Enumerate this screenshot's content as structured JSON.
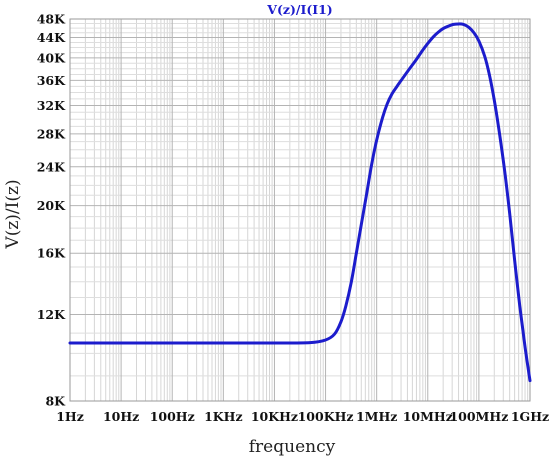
{
  "chart_data": {
    "type": "line",
    "title": "V(z)/I(I1)",
    "xlabel": "frequency",
    "ylabel": "V(z)/I(z)",
    "x_scale": "log",
    "y_scale": "log",
    "xlim": [
      1,
      1000000000
    ],
    "ylim": [
      8000,
      48000
    ],
    "x_ticks": [
      {
        "value": 1,
        "label": "1Hz"
      },
      {
        "value": 10,
        "label": "10Hz"
      },
      {
        "value": 100,
        "label": "100Hz"
      },
      {
        "value": 1000,
        "label": "1KHz"
      },
      {
        "value": 10000,
        "label": "10KHz"
      },
      {
        "value": 100000,
        "label": "100KHz"
      },
      {
        "value": 1000000,
        "label": "1MHz"
      },
      {
        "value": 10000000,
        "label": "10MHz"
      },
      {
        "value": 100000000,
        "label": "100MHz"
      },
      {
        "value": 1000000000,
        "label": "1GHz"
      }
    ],
    "y_ticks": [
      {
        "value": 8000,
        "label": "8K"
      },
      {
        "value": 12000,
        "label": "12K"
      },
      {
        "value": 16000,
        "label": "16K"
      },
      {
        "value": 20000,
        "label": "20K"
      },
      {
        "value": 24000,
        "label": "24K"
      },
      {
        "value": 28000,
        "label": "28K"
      },
      {
        "value": 32000,
        "label": "32K"
      },
      {
        "value": 36000,
        "label": "36K"
      },
      {
        "value": 40000,
        "label": "40K"
      },
      {
        "value": 44000,
        "label": "44K"
      },
      {
        "value": 48000,
        "label": "48K"
      }
    ],
    "grid": true,
    "series": [
      {
        "name": "V(z)/I(I1)",
        "color": "#1c1ccc",
        "points": [
          [
            1,
            10500
          ],
          [
            10,
            10500
          ],
          [
            100,
            10500
          ],
          [
            1000,
            10500
          ],
          [
            10000,
            10500
          ],
          [
            50000,
            10520
          ],
          [
            100000,
            10650
          ],
          [
            150000,
            10950
          ],
          [
            200000,
            11600
          ],
          [
            250000,
            12500
          ],
          [
            320000,
            14000
          ],
          [
            400000,
            16000
          ],
          [
            500000,
            18300
          ],
          [
            630000,
            21000
          ],
          [
            800000,
            24300
          ],
          [
            1000000,
            27200
          ],
          [
            1300000,
            30200
          ],
          [
            1600000,
            32200
          ],
          [
            2000000,
            33800
          ],
          [
            2500000,
            35000
          ],
          [
            3200000,
            36300
          ],
          [
            4000000,
            37500
          ],
          [
            5000000,
            38700
          ],
          [
            6300000,
            40000
          ],
          [
            8000000,
            41500
          ],
          [
            10000000,
            42800
          ],
          [
            13000000,
            44200
          ],
          [
            16000000,
            45100
          ],
          [
            20000000,
            45900
          ],
          [
            25000000,
            46400
          ],
          [
            32000000,
            46800
          ],
          [
            40000000,
            46900
          ],
          [
            50000000,
            46800
          ],
          [
            63000000,
            46200
          ],
          [
            80000000,
            45000
          ],
          [
            100000000,
            43300
          ],
          [
            130000000,
            40300
          ],
          [
            160000000,
            37000
          ],
          [
            200000000,
            32800
          ],
          [
            250000000,
            28300
          ],
          [
            320000000,
            23500
          ],
          [
            400000000,
            19300
          ],
          [
            500000000,
            15500
          ],
          [
            630000000,
            12500
          ],
          [
            800000000,
            10300
          ],
          [
            1000000000,
            8800
          ]
        ]
      }
    ]
  }
}
